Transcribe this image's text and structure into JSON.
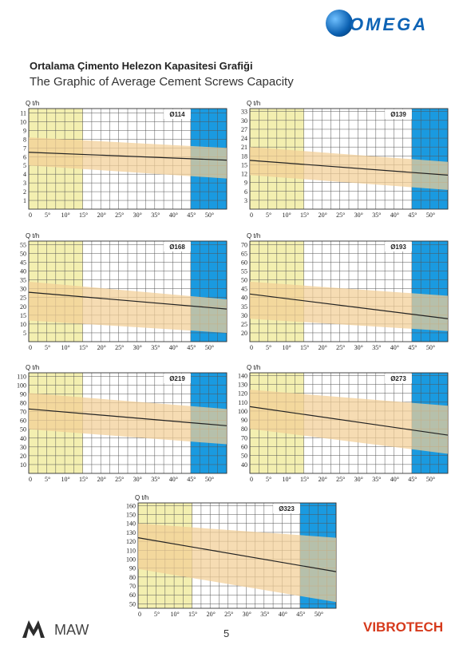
{
  "brand": {
    "name": "OMEGA",
    "footer_left": "MAW",
    "footer_right": "VIBROTECH",
    "logo_icon": "omega-globe-icon"
  },
  "titles": {
    "tr": "Ortalama Çimento Helezon Kapasitesi Grafiği",
    "en": "The Graphic of Average Cement Screws Capacity"
  },
  "page_number": "5",
  "colors": {
    "yellow_zone": "#f3efb0",
    "blue_zone": "#1a9ae0",
    "band": "#f3cf95",
    "line": "#222222"
  },
  "chart_data": [
    {
      "type": "line",
      "model": "Ø114",
      "ylabel": "Q t/h",
      "x_ticks": [
        "0",
        "5°",
        "10°",
        "15°",
        "20°",
        "25°",
        "30°",
        "35°",
        "40°",
        "45°",
        "50°"
      ],
      "xlim": [
        0,
        55
      ],
      "y_ticks": [
        1,
        2,
        3,
        4,
        5,
        6,
        7,
        8,
        9,
        10,
        11
      ],
      "ylim": [
        0,
        11.5
      ],
      "yellow_range": [
        0,
        15
      ],
      "blue_range": [
        45,
        55
      ],
      "line": {
        "x": [
          0,
          55
        ],
        "y": [
          6.5,
          5.6
        ]
      },
      "band_upper": {
        "x": [
          0,
          55
        ],
        "y": [
          8.2,
          7.0
        ]
      },
      "band_lower": {
        "x": [
          0,
          55
        ],
        "y": [
          5.0,
          3.5
        ]
      }
    },
    {
      "type": "line",
      "model": "Ø139",
      "ylabel": "Q t/h",
      "x_ticks": [
        "0",
        "5°",
        "10°",
        "15°",
        "20°",
        "25°",
        "30°",
        "35°",
        "40°",
        "45°",
        "50°"
      ],
      "xlim": [
        0,
        55
      ],
      "y_ticks": [
        3,
        6,
        9,
        12,
        15,
        18,
        21,
        24,
        27,
        30,
        33
      ],
      "ylim": [
        0,
        34
      ],
      "yellow_range": [
        0,
        15
      ],
      "blue_range": [
        45,
        55
      ],
      "line": {
        "x": [
          0,
          55
        ],
        "y": [
          16.5,
          11.5
        ]
      },
      "band_upper": {
        "x": [
          0,
          55
        ],
        "y": [
          21,
          16
        ]
      },
      "band_lower": {
        "x": [
          0,
          55
        ],
        "y": [
          11.5,
          6.5
        ]
      }
    },
    {
      "type": "line",
      "model": "Ø168",
      "ylabel": "Q t/h",
      "x_ticks": [
        "0",
        "5°",
        "10°",
        "15°",
        "20°",
        "25°",
        "30°",
        "35°",
        "40°",
        "45°",
        "50°"
      ],
      "xlim": [
        0,
        55
      ],
      "y_ticks": [
        5,
        10,
        15,
        20,
        25,
        30,
        35,
        40,
        45,
        50,
        55
      ],
      "ylim": [
        0,
        57
      ],
      "yellow_range": [
        0,
        15
      ],
      "blue_range": [
        45,
        55
      ],
      "line": {
        "x": [
          0,
          55
        ],
        "y": [
          28,
          18.5
        ]
      },
      "band_upper": {
        "x": [
          0,
          55
        ],
        "y": [
          34,
          24
        ]
      },
      "band_lower": {
        "x": [
          0,
          55
        ],
        "y": [
          12,
          5
        ]
      }
    },
    {
      "type": "line",
      "model": "Ø193",
      "ylabel": "Q t/h",
      "x_ticks": [
        "0",
        "5°",
        "10°",
        "15°",
        "20°",
        "25°",
        "30°",
        "35°",
        "40°",
        "45°",
        "50°"
      ],
      "xlim": [
        0,
        55
      ],
      "y_ticks": [
        20,
        25,
        30,
        35,
        40,
        45,
        50,
        55,
        60,
        65,
        70
      ],
      "ylim": [
        15,
        72
      ],
      "yellow_range": [
        0,
        15
      ],
      "blue_range": [
        45,
        55
      ],
      "line": {
        "x": [
          0,
          55
        ],
        "y": [
          42,
          28
        ]
      },
      "band_upper": {
        "x": [
          0,
          55
        ],
        "y": [
          49,
          41
        ]
      },
      "band_lower": {
        "x": [
          0,
          55
        ],
        "y": [
          28,
          21
        ]
      }
    },
    {
      "type": "line",
      "model": "Ø219",
      "ylabel": "Q t/h",
      "x_ticks": [
        "0",
        "5°",
        "10°",
        "15°",
        "20°",
        "25°",
        "30°",
        "35°",
        "40°",
        "45°",
        "50°"
      ],
      "xlim": [
        0,
        55
      ],
      "y_ticks": [
        10,
        20,
        30,
        40,
        50,
        60,
        70,
        80,
        90,
        100,
        110
      ],
      "ylim": [
        0,
        114
      ],
      "yellow_range": [
        0,
        15
      ],
      "blue_range": [
        45,
        55
      ],
      "line": {
        "x": [
          0,
          55
        ],
        "y": [
          73,
          54
        ]
      },
      "band_upper": {
        "x": [
          0,
          55
        ],
        "y": [
          91,
          73
        ]
      },
      "band_lower": {
        "x": [
          0,
          55
        ],
        "y": [
          50,
          33
        ]
      }
    },
    {
      "type": "line",
      "model": "Ø273",
      "ylabel": "Q t/h",
      "x_ticks": [
        "0",
        "5°",
        "10°",
        "15°",
        "20°",
        "25°",
        "30°",
        "35°",
        "40°",
        "45°",
        "50°"
      ],
      "xlim": [
        0,
        55
      ],
      "y_ticks": [
        40,
        50,
        60,
        70,
        80,
        90,
        100,
        110,
        120,
        130,
        140
      ],
      "ylim": [
        30,
        143
      ],
      "yellow_range": [
        0,
        15
      ],
      "blue_range": [
        45,
        55
      ],
      "line": {
        "x": [
          0,
          55
        ],
        "y": [
          105,
          73
        ]
      },
      "band_upper": {
        "x": [
          0,
          55
        ],
        "y": [
          124,
          106
        ]
      },
      "band_lower": {
        "x": [
          0,
          55
        ],
        "y": [
          80,
          52
        ]
      }
    },
    {
      "type": "line",
      "model": "Ø323",
      "ylabel": "Q t/h",
      "x_ticks": [
        "0",
        "5°",
        "10°",
        "15°",
        "20°",
        "25°",
        "30°",
        "35°",
        "40°",
        "45°",
        "50°"
      ],
      "xlim": [
        0,
        55
      ],
      "y_ticks": [
        50,
        60,
        70,
        80,
        90,
        100,
        110,
        120,
        130,
        140,
        150,
        160
      ],
      "ylim": [
        45,
        163
      ],
      "yellow_range": [
        0,
        15
      ],
      "blue_range": [
        45,
        55
      ],
      "line": {
        "x": [
          0,
          55
        ],
        "y": [
          124,
          86
        ]
      },
      "band_upper": {
        "x": [
          0,
          55
        ],
        "y": [
          140,
          124
        ]
      },
      "band_lower": {
        "x": [
          0,
          55
        ],
        "y": [
          89,
          52
        ]
      }
    }
  ]
}
